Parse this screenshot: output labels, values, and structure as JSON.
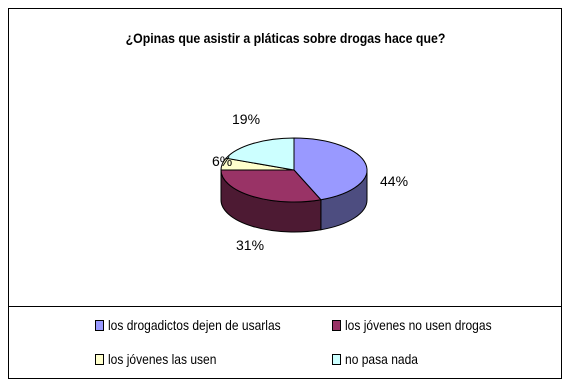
{
  "chart_data": {
    "type": "pie",
    "title": "¿Opinas que asistir a pláticas sobre drogas hace que?",
    "series": [
      {
        "name": "los drogadictos dejen de usarlas",
        "value": 44,
        "label": "44%",
        "color": "#9999ff"
      },
      {
        "name": "los jóvenes no usen drogas",
        "value": 31,
        "label": "31%",
        "color": "#993366"
      },
      {
        "name": "los jóvenes las usen",
        "value": 6,
        "label": "6%",
        "color": "#ffffcc"
      },
      {
        "name": "no pasa nada",
        "value": 19,
        "label": "19%",
        "color": "#ccffff"
      }
    ],
    "legend_position": "bottom",
    "style": "3d"
  }
}
